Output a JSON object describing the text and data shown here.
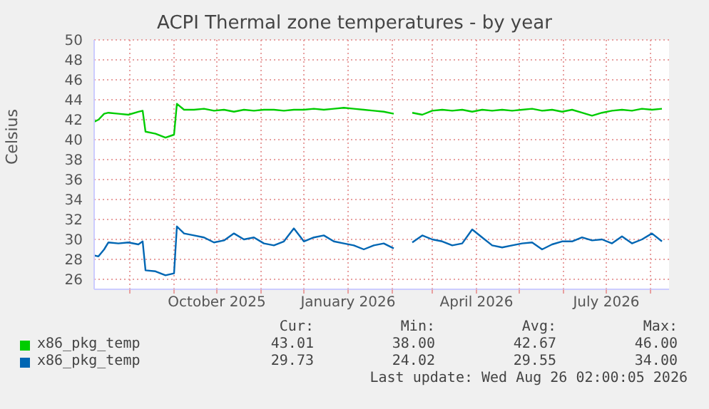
{
  "chart_data": {
    "type": "line",
    "title": "ACPI Thermal zone temperatures - by year",
    "ylabel": "Celsius",
    "x": [
      "2025-07-07",
      "2025-07-10",
      "2025-07-14",
      "2025-07-17",
      "2025-07-24",
      "2025-07-31",
      "2025-08-07",
      "2025-08-10",
      "2025-08-12",
      "2025-08-19",
      "2025-08-26",
      "2025-09-01",
      "2025-09-03",
      "2025-09-08",
      "2025-09-15",
      "2025-09-22",
      "2025-09-29",
      "2025-10-06",
      "2025-10-13",
      "2025-10-20",
      "2025-10-27",
      "2025-11-03",
      "2025-11-10",
      "2025-11-17",
      "2025-11-24",
      "2025-12-01",
      "2025-12-08",
      "2025-12-15",
      "2025-12-22",
      "2025-12-29",
      "2026-01-05",
      "2026-01-12",
      "2026-01-19",
      "2026-01-26",
      "2026-02-02",
      "2026-02-10",
      "2026-02-15",
      "2026-02-22",
      "2026-03-01",
      "2026-03-08",
      "2026-03-15",
      "2026-03-22",
      "2026-03-29",
      "2026-04-05",
      "2026-04-12",
      "2026-04-19",
      "2026-04-26",
      "2026-05-03",
      "2026-05-10",
      "2026-05-17",
      "2026-05-24",
      "2026-05-31",
      "2026-06-07",
      "2026-06-14",
      "2026-06-21",
      "2026-06-28",
      "2026-07-05",
      "2026-07-12",
      "2026-07-19",
      "2026-07-26",
      "2026-08-02",
      "2026-08-09"
    ],
    "series": [
      {
        "name": "x86_pkg_temp",
        "color": "#00cc00",
        "values": [
          41.8,
          42.0,
          42.6,
          42.7,
          42.6,
          42.5,
          42.8,
          42.9,
          40.8,
          40.6,
          40.2,
          40.5,
          43.6,
          43.0,
          43.0,
          43.1,
          42.9,
          43.0,
          42.8,
          43.0,
          42.9,
          43.0,
          43.0,
          42.9,
          43.0,
          43.0,
          43.1,
          43.0,
          43.1,
          43.2,
          43.1,
          43.0,
          42.9,
          42.8,
          42.6,
          null,
          42.7,
          42.5,
          42.9,
          43.0,
          42.9,
          43.0,
          42.8,
          43.0,
          42.9,
          43.0,
          42.9,
          43.0,
          43.1,
          42.9,
          43.0,
          42.8,
          43.0,
          42.7,
          42.4,
          42.7,
          42.9,
          43.0,
          42.9,
          43.1,
          43.0,
          43.1
        ]
      },
      {
        "name": "x86_pkg_temp",
        "color": "#0066b3",
        "values": [
          28.4,
          28.3,
          29.0,
          29.7,
          29.6,
          29.7,
          29.5,
          29.8,
          26.9,
          26.8,
          26.4,
          26.6,
          31.3,
          30.6,
          30.4,
          30.2,
          29.7,
          29.9,
          30.6,
          30.0,
          30.2,
          29.6,
          29.4,
          29.8,
          31.1,
          29.8,
          30.2,
          30.4,
          29.8,
          29.6,
          29.4,
          29.0,
          29.4,
          29.6,
          29.1,
          null,
          29.7,
          30.4,
          30.0,
          29.8,
          29.4,
          29.6,
          31.0,
          30.2,
          29.4,
          29.2,
          29.4,
          29.6,
          29.7,
          29.0,
          29.5,
          29.8,
          29.8,
          30.2,
          29.9,
          30.0,
          29.6,
          30.3,
          29.6,
          30.0,
          30.6,
          29.8
        ]
      }
    ],
    "xlim": [
      "2025-07-07",
      "2026-08-14"
    ],
    "xticks": [
      {
        "value": "2025-08-01",
        "label": null
      },
      {
        "value": "2025-09-01",
        "label": null
      },
      {
        "value": "2025-10-01",
        "label": "October 2025"
      },
      {
        "value": "2025-11-01",
        "label": null
      },
      {
        "value": "2025-12-01",
        "label": null
      },
      {
        "value": "2026-01-01",
        "label": "January 2026"
      },
      {
        "value": "2026-02-01",
        "label": null
      },
      {
        "value": "2026-03-01",
        "label": null
      },
      {
        "value": "2026-04-01",
        "label": "April 2026"
      },
      {
        "value": "2026-05-01",
        "label": null
      },
      {
        "value": "2026-06-01",
        "label": null
      },
      {
        "value": "2026-07-01",
        "label": "July 2026"
      },
      {
        "value": "2026-08-01",
        "label": null
      }
    ],
    "ylim": [
      25,
      50
    ],
    "yticks": [
      26,
      28,
      30,
      32,
      34,
      36,
      38,
      40,
      42,
      44,
      46,
      48,
      50
    ],
    "grid": true,
    "legend": "bottom",
    "annotations": [
      "Cur:",
      "Min:",
      "Avg:",
      "Max:",
      "43.01",
      "38.00",
      "42.67",
      "46.00",
      "29.73",
      "24.02",
      "29.55",
      "34.00",
      "Last update: Wed Aug 26 02:00:05 2026"
    ]
  }
}
